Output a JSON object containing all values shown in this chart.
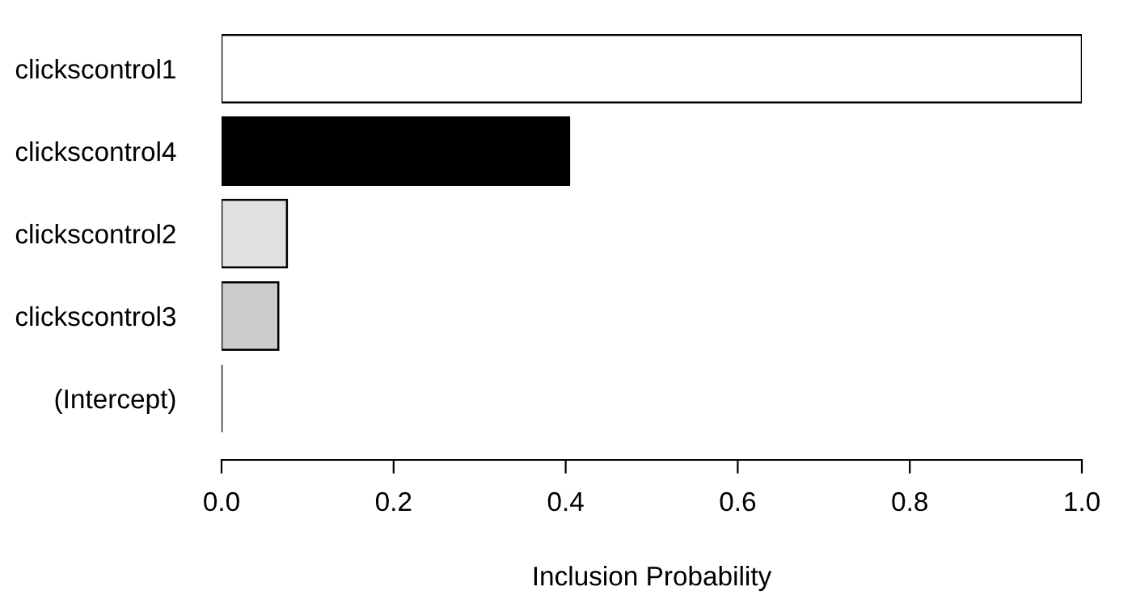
{
  "chart_data": {
    "type": "bar",
    "orientation": "horizontal",
    "xlabel": "Inclusion Probability",
    "categories": [
      "clickscontrol1",
      "clickscontrol4",
      "clickscontrol2",
      "clickscontrol3",
      "(Intercept)"
    ],
    "values": [
      1.0,
      0.404,
      0.076,
      0.066,
      0
    ],
    "colors": [
      "#ffffff",
      "#000000",
      "#e0e0e0",
      "#cccccc",
      "#000000"
    ],
    "xlim": [
      0,
      1
    ],
    "xticks": [
      {
        "value": 0,
        "label": "0.0"
      },
      0.2,
      0.4,
      0.6,
      0.8,
      {
        "value": 1,
        "label": "1.0"
      }
    ],
    "grid": false,
    "legend": false
  }
}
